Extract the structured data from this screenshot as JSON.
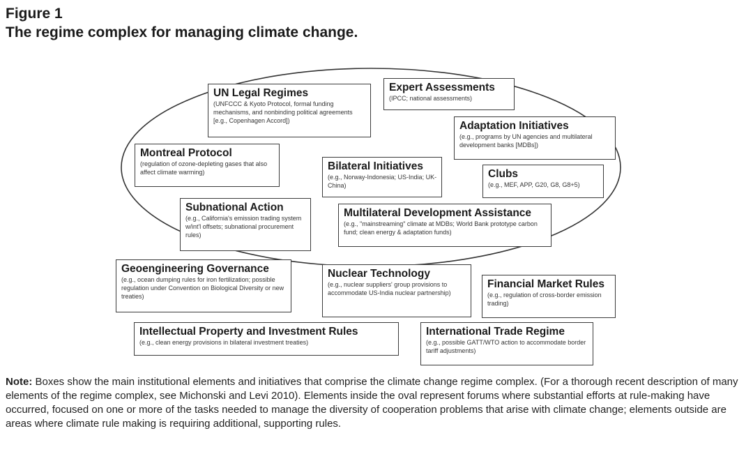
{
  "figure": {
    "label": "Figure 1",
    "title": "The regime complex for managing climate change."
  },
  "boxes": {
    "un_legal": {
      "title": "UN Legal Regimes",
      "desc": "(UNFCCC & Kyoto Protocol, formal funding mechanisms, and nonbinding political agreements [e.g., Copenhagen Accord])"
    },
    "expert": {
      "title": "Expert Assessments",
      "desc": "(IPCC; national assessments)"
    },
    "adaptation": {
      "title": "Adaptation Initiatives",
      "desc": "(e.g., programs by UN agencies and multilateral development banks [MDBs])"
    },
    "montreal": {
      "title": "Montreal Protocol",
      "desc": "(regulation of ozone-depleting gases that also affect climate warming)"
    },
    "bilateral": {
      "title": "Bilateral Initiatives",
      "desc": "(e.g., Norway-Indonesia; US-India; UK-China)"
    },
    "clubs": {
      "title": "Clubs",
      "desc": "(e.g., MEF, APP, G20, G8, G8+5)"
    },
    "subnational": {
      "title": "Subnational Action",
      "desc": "(e.g., California's emission trading system w/int'l offsets; subnational procurement rules)"
    },
    "multilateral": {
      "title": "Multilateral Development Assistance",
      "desc": "(e.g., \"mainstreaming\" climate at MDBs; World Bank prototype carbon fund; clean energy & adaptation funds)"
    },
    "geoengineering": {
      "title": "Geoengineering Governance",
      "desc": "(e.g., ocean dumping rules for iron fertilization; possible regulation under Convention on Biological Diversity or new treaties)"
    },
    "nuclear": {
      "title": "Nuclear Technology",
      "desc": "(e.g., nuclear suppliers' group provisions to accommodate US-India nuclear partnership)"
    },
    "financial": {
      "title": "Financial Market Rules",
      "desc": "(e.g., regulation of cross-border emission trading)"
    },
    "ip": {
      "title": "Intellectual Property and Investment Rules",
      "desc": "(e.g., clean energy provisions in bilateral investment treaties)"
    },
    "trade": {
      "title": "International Trade Regime",
      "desc": "(e.g., possible GATT/WTO action to accommodate border tariff adjustments)"
    }
  },
  "note": {
    "label": "Note:",
    "text": " Boxes show the main institutional elements and initiatives that comprise the climate change regime complex. (For a thorough recent description of many elements of the regime complex, see Michonski and Levi 2010). Elements inside the oval represent forums where substantial efforts at rule-making have occurred, focused on one or more of the tasks needed to manage the diversity of cooperation problems that arise with climate change; elements outside are areas where climate rule making is requiring additional, supporting rules."
  }
}
